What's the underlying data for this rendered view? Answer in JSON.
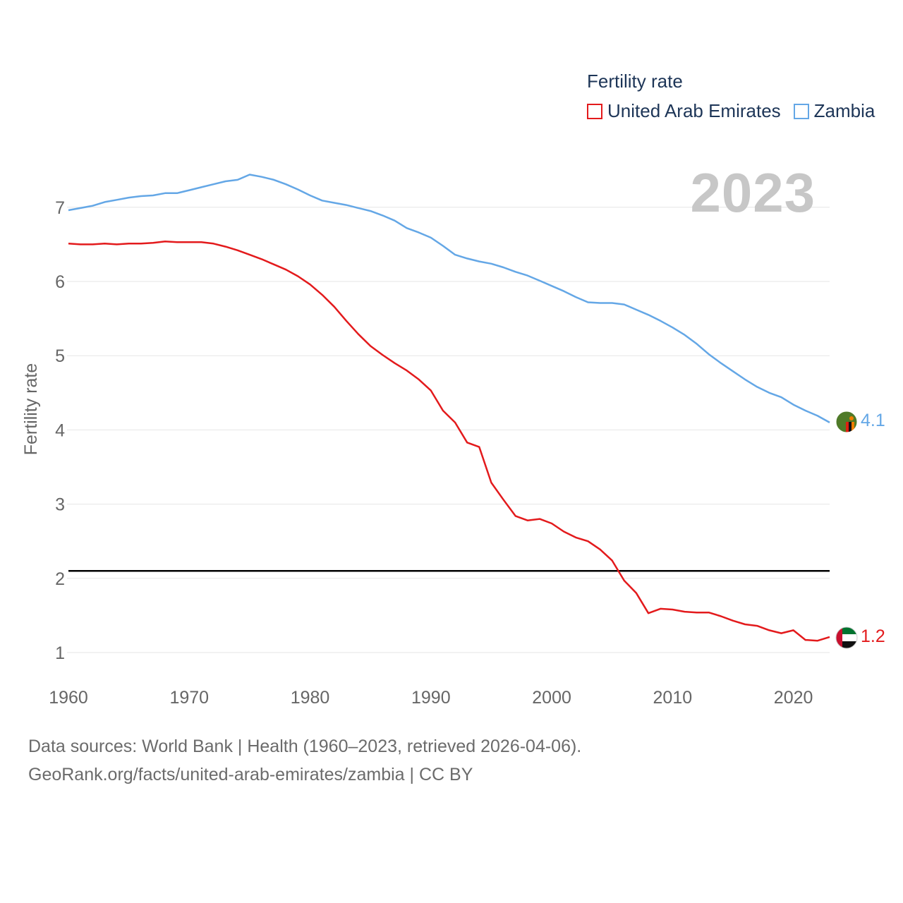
{
  "legend": {
    "title": "Fertility rate",
    "items": [
      {
        "label": "United Arab Emirates",
        "color": "#e31a1c"
      },
      {
        "label": "Zambia",
        "color": "#64a7e6"
      }
    ]
  },
  "year_overlay": "2023",
  "source": {
    "line1": "Data sources: World Bank | Health (1960–2023, retrieved 2026-04-06).",
    "line2": "GeoRank.org/facts/united-arab-emirates/zambia | CC BY"
  },
  "chart_data": {
    "type": "line",
    "title": "Fertility rate",
    "xlabel": "",
    "ylabel": "Fertility rate",
    "xlim": [
      1960,
      2023
    ],
    "ylim": [
      0.7,
      7.6
    ],
    "x_ticks": [
      1960,
      1970,
      1980,
      1990,
      2000,
      2010,
      2020
    ],
    "y_ticks": [
      1,
      2,
      3,
      4,
      5,
      6,
      7
    ],
    "grid": true,
    "reference_line": {
      "y": 2.1,
      "color": "#000000"
    },
    "x": [
      1960,
      1961,
      1962,
      1963,
      1964,
      1965,
      1966,
      1967,
      1968,
      1969,
      1970,
      1971,
      1972,
      1973,
      1974,
      1975,
      1976,
      1977,
      1978,
      1979,
      1980,
      1981,
      1982,
      1983,
      1984,
      1985,
      1986,
      1987,
      1988,
      1989,
      1990,
      1991,
      1992,
      1993,
      1994,
      1995,
      1996,
      1997,
      1998,
      1999,
      2000,
      2001,
      2002,
      2003,
      2004,
      2005,
      2006,
      2007,
      2008,
      2009,
      2010,
      2011,
      2012,
      2013,
      2014,
      2015,
      2016,
      2017,
      2018,
      2019,
      2020,
      2021,
      2022,
      2023
    ],
    "series": [
      {
        "name": "United Arab Emirates",
        "color": "#e31a1c",
        "end_label": "1.2",
        "values": [
          6.51,
          6.5,
          6.5,
          6.51,
          6.5,
          6.51,
          6.51,
          6.52,
          6.54,
          6.53,
          6.53,
          6.53,
          6.51,
          6.47,
          6.42,
          6.36,
          6.3,
          6.23,
          6.16,
          6.07,
          5.96,
          5.82,
          5.66,
          5.47,
          5.29,
          5.13,
          5.01,
          4.9,
          4.8,
          4.68,
          4.53,
          4.26,
          4.1,
          3.83,
          3.77,
          3.29,
          3.06,
          2.84,
          2.78,
          2.8,
          2.74,
          2.63,
          2.55,
          2.5,
          2.39,
          2.24,
          1.97,
          1.8,
          1.53,
          1.59,
          1.58,
          1.55,
          1.54,
          1.54,
          1.49,
          1.43,
          1.38,
          1.36,
          1.3,
          1.26,
          1.3,
          1.17,
          1.16,
          1.21
        ]
      },
      {
        "name": "Zambia",
        "color": "#64a7e6",
        "end_label": "4.1",
        "values": [
          6.96,
          6.99,
          7.02,
          7.07,
          7.1,
          7.13,
          7.15,
          7.16,
          7.19,
          7.19,
          7.23,
          7.27,
          7.31,
          7.35,
          7.37,
          7.44,
          7.41,
          7.37,
          7.31,
          7.24,
          7.16,
          7.09,
          7.06,
          7.03,
          6.99,
          6.95,
          6.89,
          6.82,
          6.72,
          6.66,
          6.59,
          6.48,
          6.36,
          6.31,
          6.27,
          6.24,
          6.19,
          6.13,
          6.08,
          6.01,
          5.94,
          5.87,
          5.79,
          5.72,
          5.71,
          5.71,
          5.69,
          5.62,
          5.55,
          5.47,
          5.38,
          5.28,
          5.16,
          5.02,
          4.9,
          4.79,
          4.68,
          4.58,
          4.5,
          4.44,
          4.34,
          4.26,
          4.19,
          4.1
        ]
      }
    ]
  }
}
